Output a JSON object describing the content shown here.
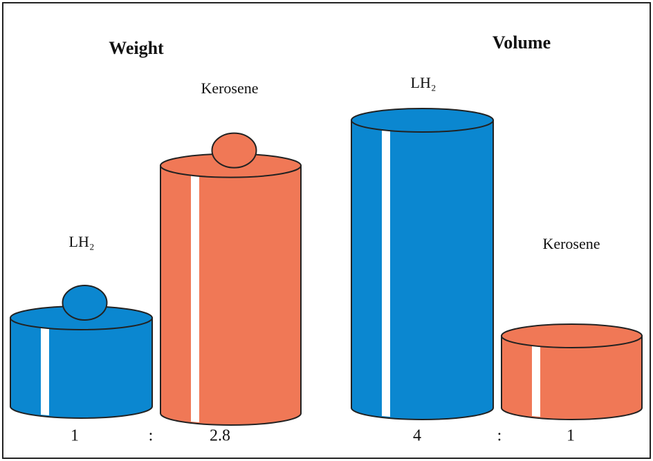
{
  "panels": [
    {
      "title": "Weight",
      "separator": ":",
      "items": [
        {
          "label": "LH₂",
          "value": 1,
          "color": "#0b87d0"
        },
        {
          "label": "Kerosene",
          "value": 2.8,
          "color": "#f07856"
        }
      ]
    },
    {
      "title": "Volume",
      "separator": ":",
      "items": [
        {
          "label": "LH₂",
          "value": 4,
          "color": "#0b87d0"
        },
        {
          "label": "Kerosene",
          "value": 1,
          "color": "#f07856"
        }
      ]
    }
  ]
}
